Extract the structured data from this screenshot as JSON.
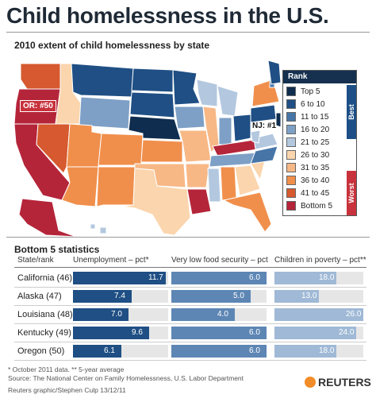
{
  "title": "Child homelessness in the U.S.",
  "map_subtitle": "2010 extent of child homelessness by state",
  "legend": {
    "title": "Rank",
    "best_label": "Best",
    "worst_label": "Worst",
    "items": [
      {
        "label": "Top 5",
        "color": "#0f2d4e"
      },
      {
        "label": "6 to 10",
        "color": "#1f4f84"
      },
      {
        "label": "11 to 15",
        "color": "#4775a8"
      },
      {
        "label": "16 to 20",
        "color": "#7ea0c6"
      },
      {
        "label": "21 to 25",
        "color": "#b3c8df"
      },
      {
        "label": "26 to 30",
        "color": "#fbd5ad"
      },
      {
        "label": "31 to 35",
        "color": "#f7b886"
      },
      {
        "label": "36 to 40",
        "color": "#f08f4c"
      },
      {
        "label": "41 to 45",
        "color": "#d6592f"
      },
      {
        "label": "Bottom 5",
        "color": "#b5253a"
      }
    ]
  },
  "callouts": {
    "or": "OR: #50",
    "nj": "NJ: #1"
  },
  "bottom5": {
    "title": "Bottom 5 statistics",
    "headers": {
      "state": "State/rank",
      "unemployment": "Unemployment – pct*",
      "food": "Very low food security – pct",
      "poverty": "Children in poverty – pct**"
    },
    "colors": {
      "unemployment": "#1f4f84",
      "food": "#5d86b4",
      "poverty": "#9fb9d6"
    }
  },
  "chart_data": {
    "type": "bar",
    "title": "Bottom 5 statistics",
    "categories": [
      "California (46)",
      "Alaska (47)",
      "Louisiana (48)",
      "Kentucky (49)",
      "Oregon (50)"
    ],
    "series": [
      {
        "name": "Unemployment – pct*",
        "values": [
          11.7,
          7.4,
          7.0,
          9.6,
          6.1
        ]
      },
      {
        "name": "Very low food security – pct",
        "values": [
          6.0,
          5.0,
          4.0,
          6.0,
          6.0
        ]
      },
      {
        "name": "Children in poverty – pct**",
        "values": [
          18.0,
          13.0,
          26.0,
          24.0,
          18.0
        ]
      }
    ],
    "value_labels": [
      [
        "11.7",
        "7.4",
        "7.0",
        "9.6",
        "6.1"
      ],
      [
        "6.0",
        "5.0",
        "4.0",
        "6.0",
        "6.0"
      ],
      [
        "18.0",
        "13.0",
        "26.0",
        "24.0",
        "18.0"
      ]
    ],
    "xlim": [
      [
        0,
        12
      ],
      [
        0,
        6
      ],
      [
        0,
        26
      ]
    ]
  },
  "notes": {
    "line1": "* October 2011 data.     ** 5-year average",
    "line2": "Source: The National Center on Family Homelessness, U.S. Labor Department",
    "line3": "Reuters graphic/Stephen Culp          13/12/11"
  },
  "brand": "REUTERS"
}
